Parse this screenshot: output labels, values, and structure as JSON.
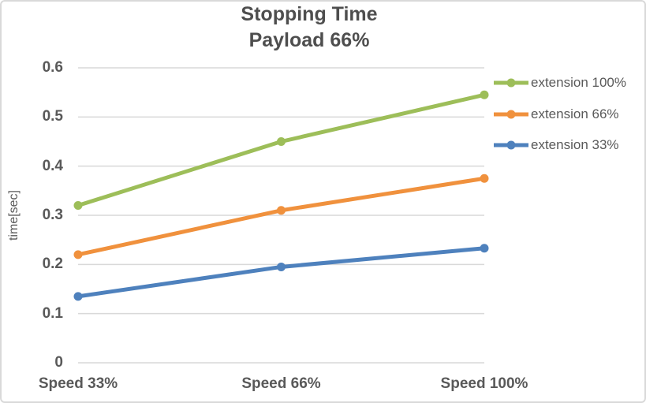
{
  "window": {
    "background": "#FFFFFF",
    "border_color": "#D9D9D9"
  },
  "chart_data": {
    "type": "line",
    "title": "Stopping Time",
    "subtitle": "Payload 66%",
    "categories": [
      "Speed 33%",
      "Speed 66%",
      "Speed 100%"
    ],
    "series": [
      {
        "name": "extension 100%",
        "color": "#9DBE59",
        "values": [
          0.32,
          0.45,
          0.545
        ]
      },
      {
        "name": "extension 66%",
        "color": "#F0913D",
        "values": [
          0.22,
          0.31,
          0.375
        ]
      },
      {
        "name": "extension 33%",
        "color": "#4E81BD",
        "values": [
          0.135,
          0.195,
          0.233
        ]
      }
    ],
    "xlabel": "",
    "ylabel": "time[sec]",
    "ylim": [
      0,
      0.6
    ],
    "ytick_step": 0.1,
    "yticks": [
      "0",
      "0.1",
      "0.2",
      "0.3",
      "0.4",
      "0.5",
      "0.6"
    ],
    "grid": true,
    "marker": "circle",
    "legend_position": "right",
    "title_color": "#4E4E4E",
    "axis_text_color": "#595959",
    "gridline_color": "#D9D9D9"
  }
}
